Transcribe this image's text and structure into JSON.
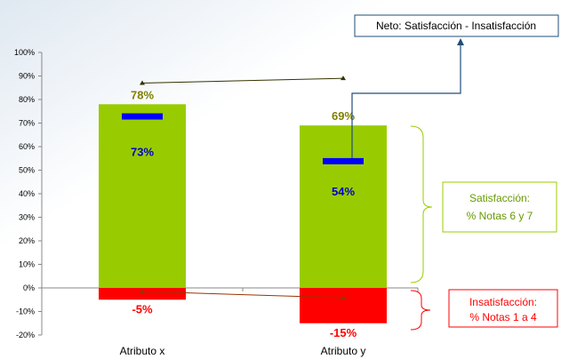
{
  "chart_data": {
    "type": "bar",
    "categories": [
      "Atributo x",
      "Atributo y"
    ],
    "ylim": [
      -20,
      100
    ],
    "yticks": [
      -20,
      -10,
      0,
      10,
      20,
      30,
      40,
      50,
      60,
      70,
      80,
      90,
      100
    ],
    "ytick_labels": [
      "-20%",
      "-10%",
      "0%",
      "10%",
      "20%",
      "30%",
      "40%",
      "50%",
      "60%",
      "70%",
      "80%",
      "90%",
      "100%"
    ],
    "grid": false,
    "legend": "none",
    "series": [
      {
        "name": "Satisfacción: % Notas 6 y 7",
        "values": [
          78,
          69
        ],
        "labels": [
          "78%",
          "69%"
        ],
        "color": "#99cc00",
        "label_color": "#808000"
      },
      {
        "name": "Insatisfacción: % Notas 1 a 4",
        "values": [
          -5,
          -15
        ],
        "labels": [
          "-5%",
          "-15%"
        ],
        "color": "#ff0000",
        "label_color": "#ff0000"
      },
      {
        "name": "Neto: Satisfacción - Insatisfacción",
        "values": [
          73,
          54
        ],
        "labels": [
          "73%",
          "54%"
        ],
        "color": "#0000ff",
        "label_color": "#0000cc"
      }
    ],
    "annotations": {
      "net": "Neto: Satisfacción - Insatisfacción",
      "sat_line1": "Satisfacción:",
      "sat_line2": "% Notas 6 y 7",
      "insat_line1": "Insatisfacción:",
      "insat_line2": "% Notas 1 a 4"
    },
    "colors": {
      "sat_box_border": "#99cc00",
      "sat_text": "#669900",
      "insat_border": "#ff0000",
      "insat_text": "#ff0000",
      "net_box_border": "#1f4e79",
      "connector": "#1f4e79",
      "trend_sat": "#333300",
      "trend_insat": "#993300"
    }
  }
}
